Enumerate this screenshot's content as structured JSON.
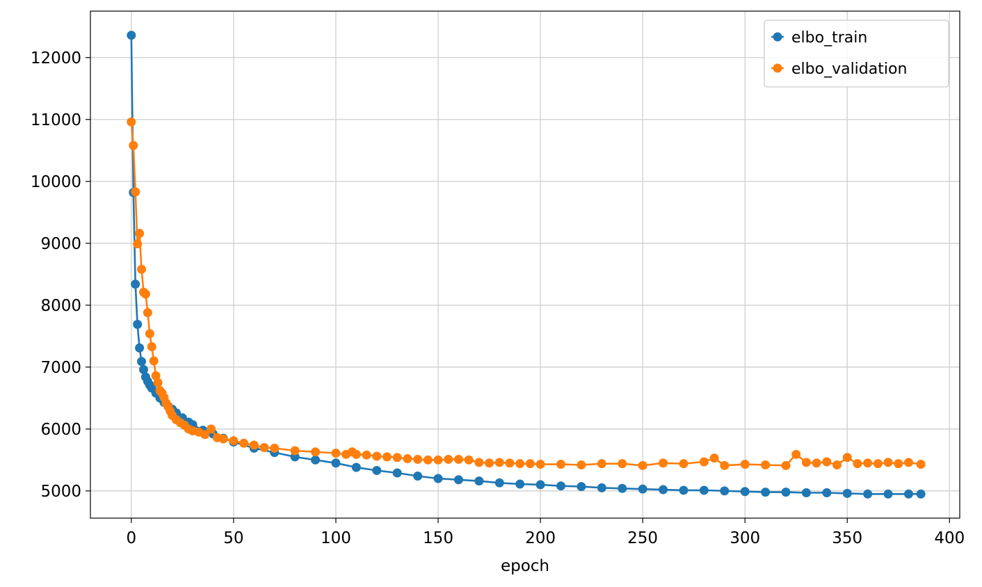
{
  "chart_data": {
    "type": "line",
    "title": "",
    "xlabel": "epoch",
    "ylabel": "",
    "xlim": [
      -20,
      405
    ],
    "ylim": [
      4560,
      12750
    ],
    "x_ticks": [
      0,
      50,
      100,
      150,
      200,
      250,
      300,
      350,
      400
    ],
    "y_ticks": [
      5000,
      6000,
      7000,
      8000,
      9000,
      10000,
      11000,
      12000
    ],
    "grid": true,
    "legend_position": "upper-right",
    "markers": true,
    "colors": {
      "elbo_train": "#1f77b4",
      "elbo_validation": "#ff7f0e"
    },
    "series": [
      {
        "name": "elbo_train",
        "x": [
          0,
          1,
          2,
          3,
          4,
          5,
          6,
          7,
          8,
          9,
          10,
          12,
          14,
          16,
          18,
          20,
          22,
          25,
          28,
          30,
          35,
          40,
          45,
          50,
          60,
          70,
          80,
          90,
          100,
          110,
          120,
          130,
          140,
          150,
          160,
          170,
          180,
          190,
          200,
          210,
          220,
          230,
          240,
          250,
          260,
          270,
          280,
          290,
          300,
          310,
          320,
          330,
          340,
          350,
          360,
          370,
          380,
          386
        ],
        "values": [
          12360,
          9820,
          8340,
          7690,
          7310,
          7090,
          6960,
          6840,
          6770,
          6710,
          6660,
          6580,
          6500,
          6430,
          6370,
          6320,
          6260,
          6180,
          6110,
          6070,
          5980,
          5920,
          5850,
          5790,
          5690,
          5620,
          5550,
          5500,
          5450,
          5380,
          5330,
          5290,
          5240,
          5200,
          5180,
          5160,
          5130,
          5110,
          5100,
          5080,
          5070,
          5050,
          5040,
          5030,
          5020,
          5010,
          5010,
          5000,
          4990,
          4980,
          4980,
          4970,
          4970,
          4960,
          4950,
          4950,
          4950,
          4950
        ]
      },
      {
        "name": "elbo_validation",
        "x": [
          0,
          1,
          2,
          3,
          4,
          5,
          6,
          7,
          8,
          9,
          10,
          11,
          12,
          13,
          14,
          15,
          16,
          17,
          18,
          19,
          20,
          22,
          24,
          26,
          28,
          30,
          33,
          36,
          39,
          42,
          45,
          50,
          55,
          60,
          65,
          70,
          80,
          90,
          100,
          105,
          108,
          110,
          115,
          120,
          125,
          130,
          135,
          140,
          145,
          150,
          155,
          160,
          165,
          170,
          175,
          180,
          185,
          190,
          195,
          200,
          210,
          220,
          230,
          240,
          250,
          260,
          270,
          280,
          285,
          290,
          300,
          310,
          320,
          325,
          330,
          335,
          340,
          345,
          350,
          355,
          360,
          365,
          370,
          375,
          380,
          386
        ],
        "values": [
          10960,
          10580,
          9830,
          8990,
          9160,
          8580,
          8210,
          8180,
          7880,
          7540,
          7330,
          7100,
          6860,
          6750,
          6620,
          6580,
          6510,
          6420,
          6360,
          6290,
          6220,
          6150,
          6100,
          6060,
          6000,
          5970,
          5950,
          5910,
          6000,
          5860,
          5840,
          5810,
          5770,
          5740,
          5700,
          5690,
          5650,
          5630,
          5610,
          5590,
          5630,
          5590,
          5580,
          5560,
          5550,
          5540,
          5520,
          5510,
          5500,
          5500,
          5510,
          5510,
          5500,
          5460,
          5450,
          5460,
          5450,
          5440,
          5440,
          5430,
          5430,
          5420,
          5440,
          5440,
          5410,
          5450,
          5440,
          5470,
          5530,
          5410,
          5430,
          5420,
          5410,
          5590,
          5460,
          5450,
          5470,
          5420,
          5540,
          5440,
          5450,
          5440,
          5460,
          5440,
          5460,
          5430
        ]
      }
    ]
  }
}
